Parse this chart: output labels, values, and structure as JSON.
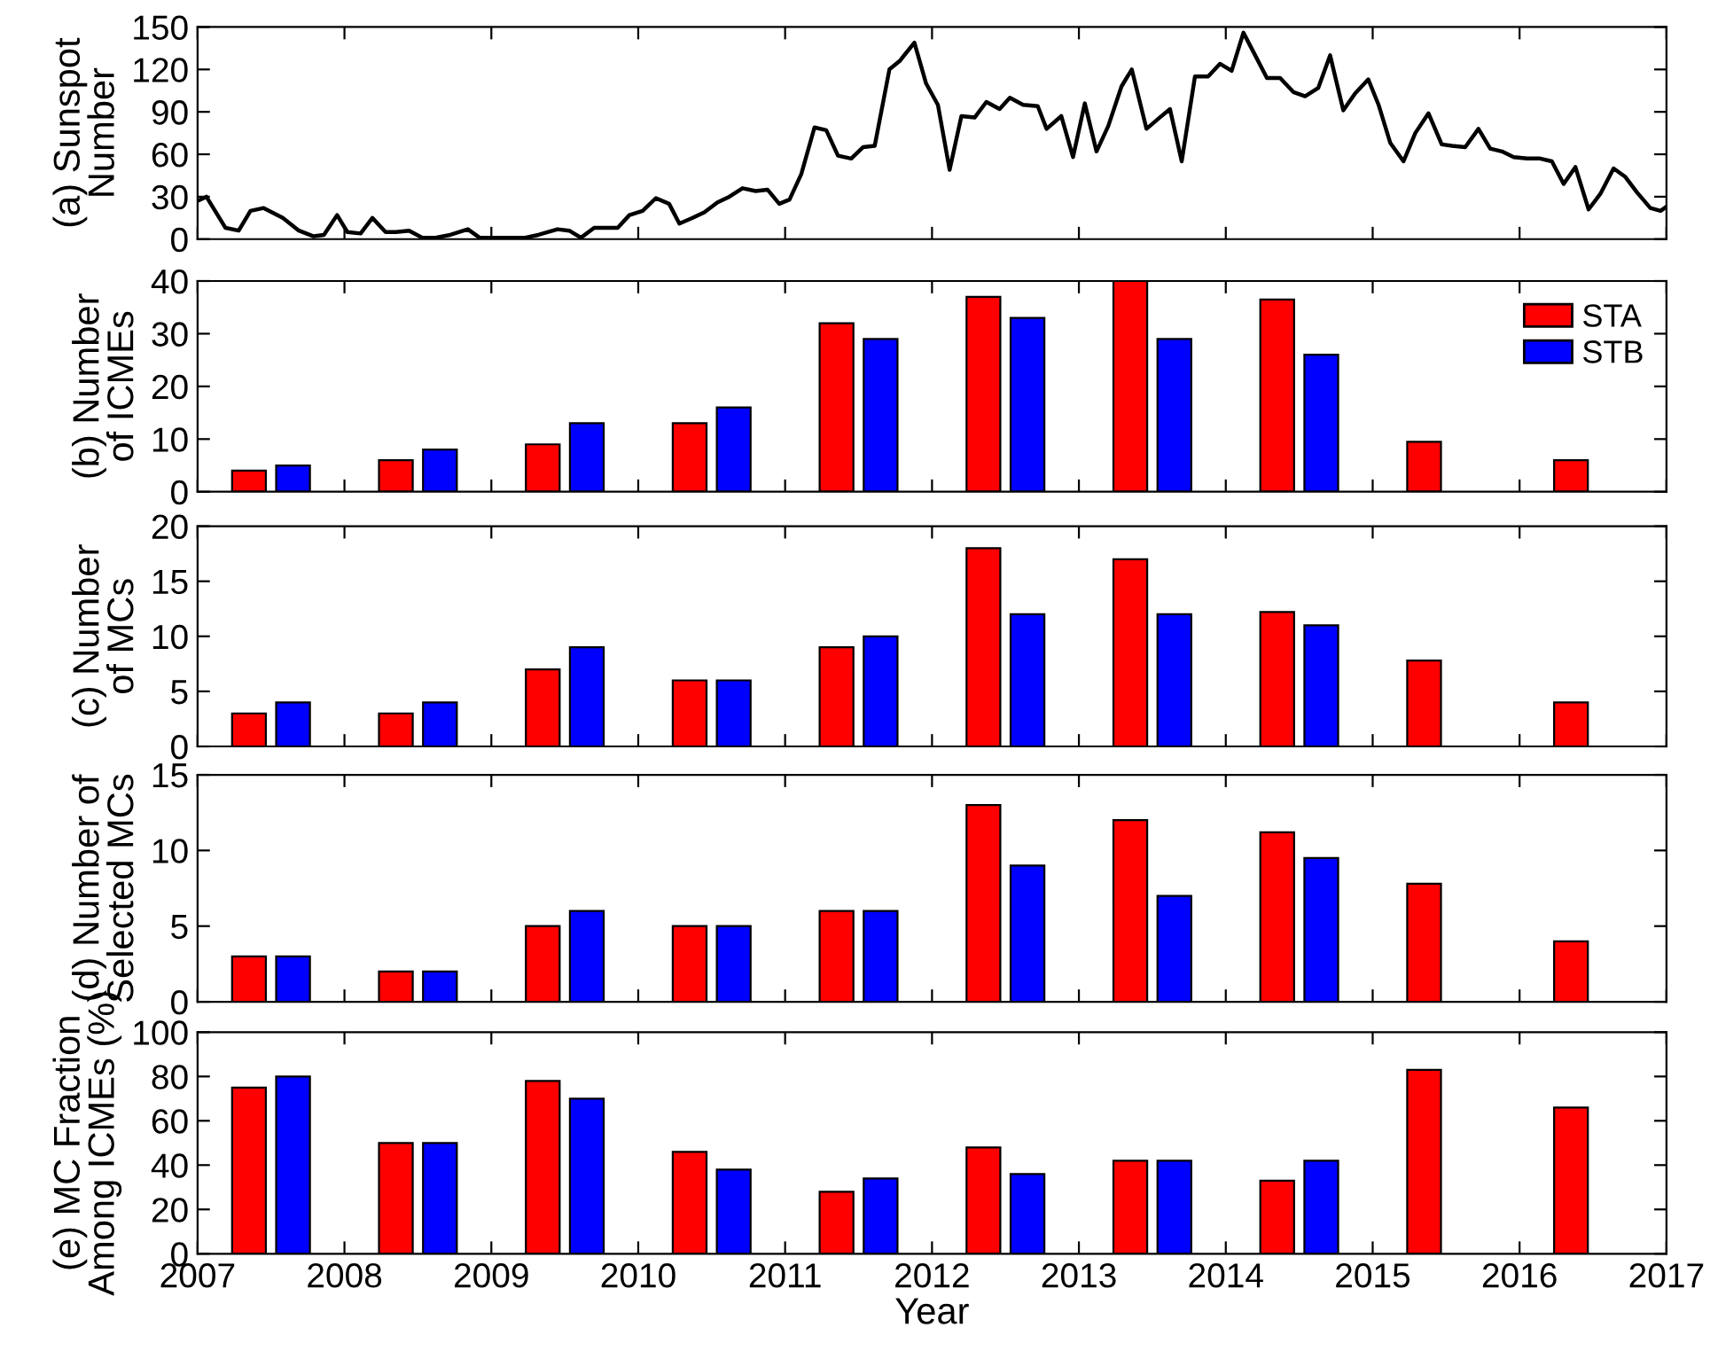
{
  "chart_data": [
    {
      "type": "line",
      "ylabel": "(a) Sunspot\nNumber",
      "xlim": [
        2007,
        2017
      ],
      "xticks": [
        2007,
        2008,
        2009,
        2010,
        2011,
        2012,
        2013,
        2014,
        2015,
        2016,
        2017
      ],
      "ylim": [
        0,
        150
      ],
      "yticks": [
        0,
        30,
        60,
        90,
        120,
        150
      ],
      "tick_labels": "y",
      "grid": false,
      "legend": false,
      "series": [
        {
          "color": "#000000",
          "x": [
            2007.0,
            2007.06,
            2007.19,
            2007.28,
            2007.36,
            2007.45,
            2007.58,
            2007.69,
            2007.79,
            2007.86,
            2007.95,
            2008.02,
            2008.11,
            2008.19,
            2008.28,
            2008.35,
            2008.44,
            2008.53,
            2008.62,
            2008.72,
            2008.84,
            2008.92,
            2009.01,
            2009.12,
            2009.23,
            2009.32,
            2009.45,
            2009.53,
            2009.61,
            2009.7,
            2009.8,
            2009.86,
            2009.94,
            2010.03,
            2010.12,
            2010.21,
            2010.28,
            2010.37,
            2010.45,
            2010.54,
            2010.62,
            2010.71,
            2010.8,
            2010.88,
            2010.96,
            2011.03,
            2011.11,
            2011.2,
            2011.28,
            2011.36,
            2011.45,
            2011.53,
            2011.61,
            2011.71,
            2011.78,
            2011.88,
            2011.96,
            2012.04,
            2012.12,
            2012.2,
            2012.29,
            2012.37,
            2012.46,
            2012.53,
            2012.62,
            2012.72,
            2012.78,
            2012.88,
            2012.96,
            2013.04,
            2013.12,
            2013.2,
            2013.29,
            2013.36,
            2013.46,
            2013.55,
            2013.62,
            2013.7,
            2013.79,
            2013.88,
            2013.96,
            2014.04,
            2014.12,
            2014.2,
            2014.28,
            2014.37,
            2014.46,
            2014.54,
            2014.63,
            2014.71,
            2014.8,
            2014.88,
            2014.97,
            2015.04,
            2015.12,
            2015.21,
            2015.29,
            2015.38,
            2015.47,
            2015.54,
            2015.63,
            2015.72,
            2015.8,
            2015.88,
            2015.96,
            2016.05,
            2016.14,
            2016.22,
            2016.3,
            2016.38,
            2016.47,
            2016.55,
            2016.64,
            2016.72,
            2016.8,
            2016.89,
            2016.96,
            2017.0
          ],
          "values": [
            27,
            30,
            8,
            6,
            20,
            22,
            15,
            6,
            2,
            3,
            17,
            5,
            4,
            15,
            5,
            5,
            6,
            1,
            1,
            3,
            7,
            1,
            1,
            1,
            1,
            3,
            7,
            6,
            1,
            8,
            8,
            8,
            17,
            20,
            29,
            25,
            11,
            15,
            19,
            26,
            30,
            36,
            34,
            35,
            25,
            28,
            46,
            79,
            77,
            59,
            57,
            65,
            66,
            120,
            126,
            139,
            110,
            95,
            49,
            87,
            86,
            97,
            92,
            100,
            95,
            94,
            78,
            87,
            58,
            96,
            62,
            80,
            108,
            120,
            78,
            86,
            92,
            55,
            115,
            115,
            124,
            119,
            146,
            130,
            114,
            114,
            104,
            101,
            107,
            130,
            91,
            103,
            113,
            95,
            68,
            55,
            75,
            89,
            67,
            66,
            65,
            78,
            64,
            62,
            58,
            57,
            57,
            55,
            39,
            51,
            21,
            32,
            50,
            44,
            33,
            22,
            20,
            23
          ]
        }
      ]
    },
    {
      "type": "bar",
      "ylabel": "(b) Number\nof ICMEs",
      "xlim": [
        2007,
        2017
      ],
      "xticks": [
        2007,
        2008,
        2009,
        2010,
        2011,
        2012,
        2013,
        2014,
        2015,
        2016,
        2017
      ],
      "ylim": [
        0,
        40
      ],
      "yticks": [
        0,
        10,
        20,
        30,
        40
      ],
      "tick_labels": "y",
      "grid": false,
      "legend": "top right",
      "series": [
        {
          "name": "STA",
          "color": "#ff0000",
          "x": [
            2007.35,
            2008.35,
            2009.35,
            2010.35,
            2011.35,
            2012.35,
            2013.35,
            2014.35,
            2015.35,
            2016.35
          ],
          "values": [
            4,
            6,
            9,
            13,
            32,
            37,
            40,
            36.5,
            9.5,
            6
          ]
        },
        {
          "name": "STB",
          "color": "#0000ff",
          "x": [
            2007.65,
            2008.65,
            2009.65,
            2010.65,
            2011.65,
            2012.65,
            2013.65,
            2014.65
          ],
          "values": [
            5,
            8,
            13,
            16,
            29,
            33,
            29,
            26
          ]
        }
      ]
    },
    {
      "type": "bar",
      "ylabel": "(c) Number\nof MCs",
      "xlim": [
        2007,
        2017
      ],
      "xticks": [
        2007,
        2008,
        2009,
        2010,
        2011,
        2012,
        2013,
        2014,
        2015,
        2016,
        2017
      ],
      "ylim": [
        0,
        20
      ],
      "yticks": [
        0,
        5,
        10,
        15,
        20
      ],
      "tick_labels": "y",
      "grid": false,
      "legend": false,
      "series": [
        {
          "color": "#ff0000",
          "x": [
            2007.35,
            2008.35,
            2009.35,
            2010.35,
            2011.35,
            2012.35,
            2013.35,
            2014.35,
            2015.35,
            2016.35
          ],
          "values": [
            3,
            3,
            7,
            6,
            9,
            18,
            17,
            12.2,
            7.8,
            4
          ]
        },
        {
          "color": "#0000ff",
          "x": [
            2007.65,
            2008.65,
            2009.65,
            2010.65,
            2011.65,
            2012.65,
            2013.65,
            2014.65
          ],
          "values": [
            4,
            4,
            9,
            6,
            10,
            12,
            12,
            11
          ]
        }
      ]
    },
    {
      "type": "bar",
      "ylabel": "(d) Number of\nSelected MCs",
      "xlim": [
        2007,
        2017
      ],
      "xticks": [
        2007,
        2008,
        2009,
        2010,
        2011,
        2012,
        2013,
        2014,
        2015,
        2016,
        2017
      ],
      "ylim": [
        0,
        15
      ],
      "yticks": [
        0,
        5,
        10,
        15
      ],
      "tick_labels": "y",
      "grid": false,
      "legend": false,
      "series": [
        {
          "color": "#ff0000",
          "x": [
            2007.35,
            2008.35,
            2009.35,
            2010.35,
            2011.35,
            2012.35,
            2013.35,
            2014.35,
            2015.35,
            2016.35
          ],
          "values": [
            3,
            2,
            5,
            5,
            6,
            13,
            12,
            11.2,
            7.8,
            4
          ]
        },
        {
          "color": "#0000ff",
          "x": [
            2007.65,
            2008.65,
            2009.65,
            2010.65,
            2011.65,
            2012.65,
            2013.65,
            2014.65
          ],
          "values": [
            3,
            2,
            6,
            5,
            6,
            9,
            7,
            9.5
          ]
        }
      ]
    },
    {
      "type": "bar",
      "ylabel": "(e) MC Fraction\nAmong ICMEs (%)",
      "xlabel": "Year",
      "xlim": [
        2007,
        2017
      ],
      "xticks": [
        2007,
        2008,
        2009,
        2010,
        2011,
        2012,
        2013,
        2014,
        2015,
        2016,
        2017
      ],
      "ylim": [
        0,
        100
      ],
      "yticks": [
        0,
        20,
        40,
        60,
        80,
        100
      ],
      "grid": false,
      "legend": false,
      "series": [
        {
          "color": "#ff0000",
          "x": [
            2007.35,
            2008.35,
            2009.35,
            2010.35,
            2011.35,
            2012.35,
            2013.35,
            2014.35,
            2015.35,
            2016.35
          ],
          "values": [
            75,
            50,
            78,
            46,
            28,
            48,
            42,
            33,
            83,
            66
          ]
        },
        {
          "color": "#0000ff",
          "x": [
            2007.65,
            2008.65,
            2009.65,
            2010.65,
            2011.65,
            2012.65,
            2013.65,
            2014.65
          ],
          "values": [
            80,
            50,
            70,
            38,
            34,
            36,
            42,
            42
          ]
        }
      ]
    }
  ]
}
